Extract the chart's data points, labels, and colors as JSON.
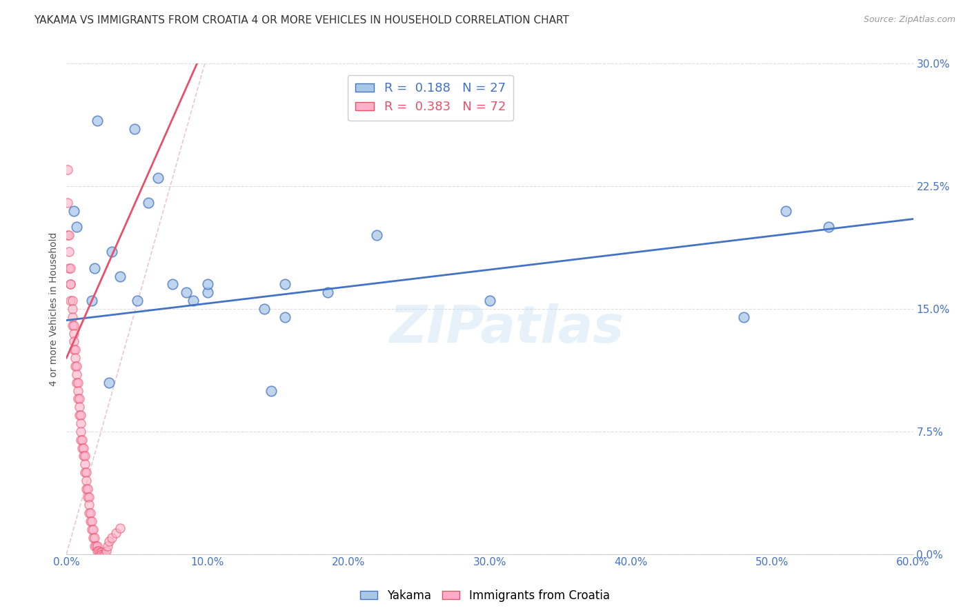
{
  "title": "YAKAMA VS IMMIGRANTS FROM CROATIA 4 OR MORE VEHICLES IN HOUSEHOLD CORRELATION CHART",
  "source": "Source: ZipAtlas.com",
  "ylabel_label": "4 or more Vehicles in Household",
  "legend_blue_label": "Yakama",
  "legend_pink_label": "Immigrants from Croatia",
  "R_blue": 0.188,
  "N_blue": 27,
  "R_pink": 0.383,
  "N_pink": 72,
  "blue_color": "#A8C8E8",
  "pink_color": "#FFB0C8",
  "blue_line_color": "#4472C4",
  "pink_line_color": "#E8506A",
  "dash_color": "#E0B0C0",
  "watermark": "ZIPatlas",
  "xlabel_ticks": [
    "0.0%",
    "10.0%",
    "20.0%",
    "30.0%",
    "40.0%",
    "50.0%",
    "60.0%"
  ],
  "xlabel_vals": [
    0.0,
    0.1,
    0.2,
    0.3,
    0.4,
    0.5,
    0.6
  ],
  "ylabel_ticks": [
    "0.0%",
    "7.5%",
    "15.0%",
    "22.5%",
    "30.0%"
  ],
  "ylabel_vals": [
    0.0,
    0.075,
    0.15,
    0.225,
    0.3
  ],
  "xlim": [
    0.0,
    0.6
  ],
  "ylim": [
    0.0,
    0.3
  ],
  "blue_scatter_x": [
    0.022,
    0.048,
    0.065,
    0.058,
    0.005,
    0.007,
    0.032,
    0.02,
    0.038,
    0.075,
    0.155,
    0.1,
    0.018,
    0.05,
    0.085,
    0.09,
    0.14,
    0.155,
    0.185,
    0.1,
    0.22,
    0.3,
    0.51,
    0.54,
    0.48,
    0.03,
    0.145
  ],
  "blue_scatter_y": [
    0.265,
    0.26,
    0.23,
    0.215,
    0.21,
    0.2,
    0.185,
    0.175,
    0.17,
    0.165,
    0.165,
    0.16,
    0.155,
    0.155,
    0.16,
    0.155,
    0.15,
    0.145,
    0.16,
    0.165,
    0.195,
    0.155,
    0.21,
    0.2,
    0.145,
    0.105,
    0.1
  ],
  "pink_scatter_x": [
    0.001,
    0.001,
    0.001,
    0.002,
    0.002,
    0.002,
    0.003,
    0.003,
    0.003,
    0.003,
    0.004,
    0.004,
    0.004,
    0.004,
    0.005,
    0.005,
    0.005,
    0.005,
    0.006,
    0.006,
    0.006,
    0.007,
    0.007,
    0.007,
    0.008,
    0.008,
    0.008,
    0.009,
    0.009,
    0.009,
    0.01,
    0.01,
    0.01,
    0.01,
    0.011,
    0.011,
    0.012,
    0.012,
    0.013,
    0.013,
    0.013,
    0.014,
    0.014,
    0.014,
    0.015,
    0.015,
    0.016,
    0.016,
    0.016,
    0.017,
    0.017,
    0.018,
    0.018,
    0.019,
    0.019,
    0.02,
    0.02,
    0.021,
    0.022,
    0.022,
    0.023,
    0.024,
    0.025,
    0.025,
    0.026,
    0.027,
    0.028,
    0.029,
    0.03,
    0.032,
    0.035,
    0.038
  ],
  "pink_scatter_y": [
    0.235,
    0.215,
    0.195,
    0.195,
    0.185,
    0.175,
    0.175,
    0.165,
    0.165,
    0.155,
    0.155,
    0.15,
    0.145,
    0.14,
    0.14,
    0.135,
    0.13,
    0.125,
    0.125,
    0.12,
    0.115,
    0.115,
    0.11,
    0.105,
    0.105,
    0.1,
    0.095,
    0.095,
    0.09,
    0.085,
    0.085,
    0.08,
    0.075,
    0.07,
    0.07,
    0.065,
    0.065,
    0.06,
    0.06,
    0.055,
    0.05,
    0.05,
    0.045,
    0.04,
    0.04,
    0.035,
    0.035,
    0.03,
    0.025,
    0.025,
    0.02,
    0.02,
    0.015,
    0.015,
    0.01,
    0.01,
    0.005,
    0.005,
    0.005,
    0.002,
    0.002,
    0.001,
    0.001,
    0.0,
    0.0,
    0.0,
    0.002,
    0.005,
    0.008,
    0.01,
    0.013,
    0.016
  ],
  "blue_line_x": [
    0.0,
    0.6
  ],
  "blue_line_y": [
    0.143,
    0.205
  ],
  "pink_line_x": [
    0.0,
    0.095
  ],
  "pink_line_y": [
    0.12,
    0.305
  ],
  "dash_line_x": [
    0.0,
    0.098
  ],
  "dash_line_y": [
    0.0,
    0.3
  ]
}
